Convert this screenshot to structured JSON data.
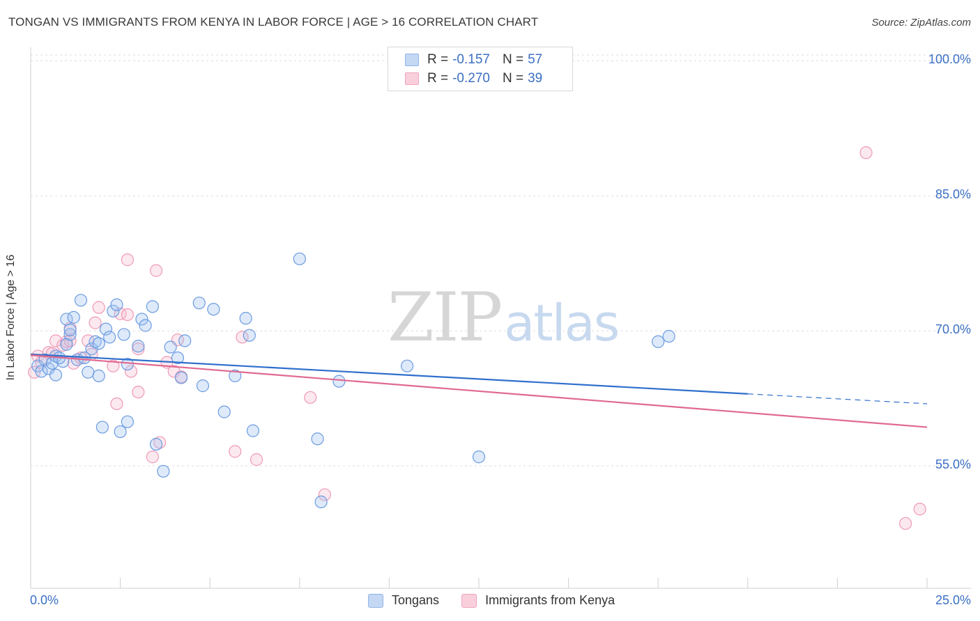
{
  "header": {
    "title": "TONGAN VS IMMIGRANTS FROM KENYA IN LABOR FORCE | AGE > 16 CORRELATION CHART",
    "source": "Source: ZipAtlas.com"
  },
  "legend": {
    "items": [
      {
        "r_label": "R =",
        "r_value": "-0.157",
        "n_label": "N =",
        "n_value": "57",
        "color": "#8fb3e6",
        "fill": "#c4d8f3"
      },
      {
        "r_label": "R =",
        "r_value": "-0.270",
        "n_label": "N =",
        "n_value": "39",
        "color": "#f1a3bd",
        "fill": "#f9cfdc"
      }
    ]
  },
  "bottom_legend": {
    "tongans": "Tongans",
    "kenya": "Immigrants from Kenya"
  },
  "watermark": {
    "zip": "ZIP",
    "atlas": "atlas"
  },
  "colors": {
    "blue_line": "#2f6fcc",
    "pink_line": "#e0698f",
    "blue_stroke": "#6b9be0",
    "blue_fill": "rgba(160,195,240,0.35)",
    "pink_stroke": "#ee9ab6",
    "pink_fill": "rgba(247,190,210,0.35)",
    "tick_label": "#3b6fc4"
  },
  "chart_data": {
    "type": "scatter",
    "title": "TONGAN VS IMMIGRANTS FROM KENYA IN LABOR FORCE | AGE > 16 CORRELATION CHART",
    "xlabel": "",
    "ylabel": "In Labor Force | Age > 16",
    "xlim": [
      0,
      25
    ],
    "ylim": [
      41.4,
      101.5
    ],
    "x_tick_labels": [
      "0.0%",
      "25.0%"
    ],
    "y_ticks": [
      55,
      70,
      85,
      100
    ],
    "y_tick_labels": [
      "55.0%",
      "70.0%",
      "85.0%",
      "100.0%"
    ],
    "series": [
      {
        "name": "Tongans",
        "r": -0.157,
        "n": 57,
        "trend": {
          "x": [
            0,
            20
          ],
          "y": [
            67.4,
            63.0
          ],
          "dashed_to": [
            25,
            61.9
          ]
        },
        "points": [
          [
            0.2,
            66.1
          ],
          [
            0.3,
            65.5
          ],
          [
            0.4,
            66.8
          ],
          [
            0.5,
            65.8
          ],
          [
            0.6,
            66.4
          ],
          [
            0.7,
            67.2
          ],
          [
            0.9,
            66.6
          ],
          [
            0.7,
            65.1
          ],
          [
            0.8,
            67.0
          ],
          [
            1.0,
            68.5
          ],
          [
            1.1,
            69.6
          ],
          [
            1.1,
            70.1
          ],
          [
            1.0,
            71.3
          ],
          [
            1.2,
            71.5
          ],
          [
            1.3,
            66.8
          ],
          [
            1.4,
            73.4
          ],
          [
            1.5,
            67.0
          ],
          [
            1.6,
            65.4
          ],
          [
            1.7,
            68.0
          ],
          [
            1.8,
            68.8
          ],
          [
            1.9,
            68.6
          ],
          [
            1.9,
            65.0
          ],
          [
            2.0,
            59.3
          ],
          [
            2.1,
            70.2
          ],
          [
            2.2,
            69.3
          ],
          [
            2.3,
            72.2
          ],
          [
            2.4,
            72.9
          ],
          [
            2.5,
            58.8
          ],
          [
            2.6,
            69.6
          ],
          [
            2.7,
            59.9
          ],
          [
            2.7,
            66.3
          ],
          [
            3.0,
            68.3
          ],
          [
            3.1,
            71.3
          ],
          [
            3.2,
            70.6
          ],
          [
            3.4,
            72.7
          ],
          [
            3.5,
            57.4
          ],
          [
            3.7,
            54.4
          ],
          [
            3.9,
            68.2
          ],
          [
            4.1,
            67.0
          ],
          [
            4.2,
            64.8
          ],
          [
            4.3,
            68.9
          ],
          [
            4.7,
            73.1
          ],
          [
            4.8,
            63.9
          ],
          [
            5.1,
            72.4
          ],
          [
            5.4,
            61.0
          ],
          [
            5.7,
            65.0
          ],
          [
            6.0,
            71.4
          ],
          [
            6.1,
            69.5
          ],
          [
            6.2,
            58.9
          ],
          [
            7.5,
            78.0
          ],
          [
            8.0,
            58.0
          ],
          [
            8.1,
            51.0
          ],
          [
            8.6,
            64.4
          ],
          [
            10.5,
            66.1
          ],
          [
            12.5,
            56.0
          ],
          [
            17.5,
            68.8
          ],
          [
            17.8,
            69.4
          ]
        ]
      },
      {
        "name": "Immigrants from Kenya",
        "r": -0.27,
        "n": 39,
        "trend": {
          "x": [
            0,
            25
          ],
          "y": [
            67.3,
            59.3
          ]
        },
        "points": [
          [
            0.1,
            65.4
          ],
          [
            0.2,
            67.2
          ],
          [
            0.3,
            66.5
          ],
          [
            0.5,
            67.6
          ],
          [
            0.6,
            67.5
          ],
          [
            0.7,
            68.9
          ],
          [
            0.9,
            68.4
          ],
          [
            1.0,
            68.8
          ],
          [
            1.1,
            68.9
          ],
          [
            1.1,
            70.3
          ],
          [
            1.2,
            66.4
          ],
          [
            1.4,
            67.0
          ],
          [
            1.6,
            68.9
          ],
          [
            1.7,
            67.4
          ],
          [
            1.8,
            70.9
          ],
          [
            1.9,
            72.6
          ],
          [
            2.3,
            66.1
          ],
          [
            2.4,
            61.9
          ],
          [
            2.5,
            71.9
          ],
          [
            2.7,
            71.8
          ],
          [
            2.7,
            77.9
          ],
          [
            2.8,
            65.5
          ],
          [
            3.0,
            68.0
          ],
          [
            3.0,
            63.2
          ],
          [
            3.4,
            56.0
          ],
          [
            3.5,
            76.7
          ],
          [
            3.6,
            57.6
          ],
          [
            3.8,
            66.5
          ],
          [
            4.0,
            65.5
          ],
          [
            4.1,
            69.0
          ],
          [
            4.2,
            64.9
          ],
          [
            5.7,
            56.6
          ],
          [
            5.9,
            69.3
          ],
          [
            6.3,
            55.7
          ],
          [
            7.8,
            62.6
          ],
          [
            8.2,
            51.8
          ],
          [
            23.3,
            89.8
          ],
          [
            24.4,
            48.6
          ],
          [
            24.8,
            50.2
          ]
        ]
      }
    ]
  }
}
